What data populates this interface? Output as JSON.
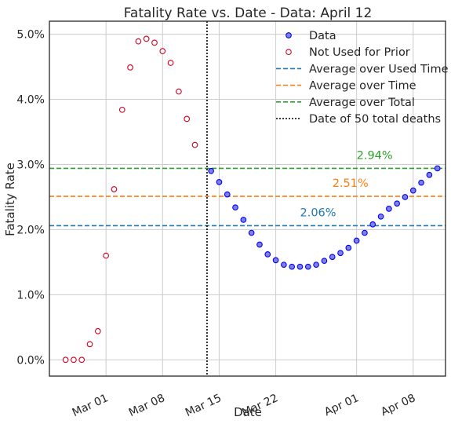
{
  "chart_data": {
    "type": "scatter",
    "title": "Fatality Rate vs. Date - Data: April 12",
    "xlabel": "Date",
    "ylabel": "Fatality Rate",
    "xlim": [
      "2020-02-23",
      "2020-04-12"
    ],
    "ylim": [
      -0.0025,
      0.052
    ],
    "grid": true,
    "legend_position": "top-right",
    "x_ticks": [
      {
        "date": "2020-03-01",
        "label": "Mar 01"
      },
      {
        "date": "2020-03-08",
        "label": "Mar 08"
      },
      {
        "date": "2020-03-15",
        "label": "Mar 15"
      },
      {
        "date": "2020-03-22",
        "label": "Mar 22"
      },
      {
        "date": "2020-04-01",
        "label": "Apr 01"
      },
      {
        "date": "2020-04-08",
        "label": "Apr 08"
      }
    ],
    "y_ticks": [
      {
        "value": 0.0,
        "label": "0.0%"
      },
      {
        "value": 0.01,
        "label": "1.0%"
      },
      {
        "value": 0.02,
        "label": "2.0%"
      },
      {
        "value": 0.03,
        "label": "3.0%"
      },
      {
        "value": 0.04,
        "label": "4.0%"
      },
      {
        "value": 0.05,
        "label": "5.0%"
      }
    ],
    "series": [
      {
        "name": "Data",
        "marker": "filled-circle",
        "color": "#0000ff",
        "fill": "#8080e0",
        "points": [
          {
            "date": "2020-03-14",
            "value": 0.029
          },
          {
            "date": "2020-03-15",
            "value": 0.0273
          },
          {
            "date": "2020-03-16",
            "value": 0.0254
          },
          {
            "date": "2020-03-17",
            "value": 0.0234
          },
          {
            "date": "2020-03-18",
            "value": 0.0215
          },
          {
            "date": "2020-03-19",
            "value": 0.0195
          },
          {
            "date": "2020-03-20",
            "value": 0.0177
          },
          {
            "date": "2020-03-21",
            "value": 0.0162
          },
          {
            "date": "2020-03-22",
            "value": 0.0153
          },
          {
            "date": "2020-03-23",
            "value": 0.0146
          },
          {
            "date": "2020-03-24",
            "value": 0.0143
          },
          {
            "date": "2020-03-25",
            "value": 0.0143
          },
          {
            "date": "2020-03-26",
            "value": 0.0143
          },
          {
            "date": "2020-03-27",
            "value": 0.0146
          },
          {
            "date": "2020-03-28",
            "value": 0.0152
          },
          {
            "date": "2020-03-29",
            "value": 0.0158
          },
          {
            "date": "2020-03-30",
            "value": 0.0164
          },
          {
            "date": "2020-03-31",
            "value": 0.0172
          },
          {
            "date": "2020-04-01",
            "value": 0.0183
          },
          {
            "date": "2020-04-02",
            "value": 0.0195
          },
          {
            "date": "2020-04-03",
            "value": 0.0208
          },
          {
            "date": "2020-04-04",
            "value": 0.022
          },
          {
            "date": "2020-04-05",
            "value": 0.0232
          },
          {
            "date": "2020-04-06",
            "value": 0.024
          },
          {
            "date": "2020-04-07",
            "value": 0.025
          },
          {
            "date": "2020-04-08",
            "value": 0.026
          },
          {
            "date": "2020-04-09",
            "value": 0.0272
          },
          {
            "date": "2020-04-10",
            "value": 0.0284
          },
          {
            "date": "2020-04-11",
            "value": 0.0294
          }
        ]
      },
      {
        "name": "Not Used for Prior",
        "marker": "open-circle",
        "color": "#cc0022",
        "points": [
          {
            "date": "2020-02-25",
            "value": 0.0
          },
          {
            "date": "2020-02-26",
            "value": 0.0
          },
          {
            "date": "2020-02-27",
            "value": 0.0
          },
          {
            "date": "2020-02-28",
            "value": 0.0024
          },
          {
            "date": "2020-02-29",
            "value": 0.0044
          },
          {
            "date": "2020-03-01",
            "value": 0.016
          },
          {
            "date": "2020-03-02",
            "value": 0.0262
          },
          {
            "date": "2020-03-03",
            "value": 0.0384
          },
          {
            "date": "2020-03-04",
            "value": 0.0449
          },
          {
            "date": "2020-03-05",
            "value": 0.0489
          },
          {
            "date": "2020-03-06",
            "value": 0.0493
          },
          {
            "date": "2020-03-07",
            "value": 0.0487
          },
          {
            "date": "2020-03-08",
            "value": 0.0474
          },
          {
            "date": "2020-03-09",
            "value": 0.0456
          },
          {
            "date": "2020-03-10",
            "value": 0.0412
          },
          {
            "date": "2020-03-11",
            "value": 0.037
          },
          {
            "date": "2020-03-12",
            "value": 0.033
          }
        ]
      }
    ],
    "reference_lines": [
      {
        "name": "Average over Used Time",
        "orientation": "horizontal",
        "value": 0.0206,
        "style": "dashed",
        "color": "#1f77b4",
        "annotation": "2.06%",
        "annotation_date": "2020-03-25"
      },
      {
        "name": "Average over Time",
        "orientation": "horizontal",
        "value": 0.0251,
        "style": "dashed",
        "color": "#ff7f0e",
        "annotation": "2.51%",
        "annotation_date": "2020-03-29"
      },
      {
        "name": "Average over Total",
        "orientation": "horizontal",
        "value": 0.0294,
        "style": "dashed",
        "color": "#2ca02c",
        "annotation": "2.94%",
        "annotation_date": "2020-04-01"
      },
      {
        "name": "Date of 50 total deaths",
        "orientation": "vertical",
        "date": "2020-03-13",
        "style": "dotted",
        "color": "#000000"
      }
    ]
  }
}
